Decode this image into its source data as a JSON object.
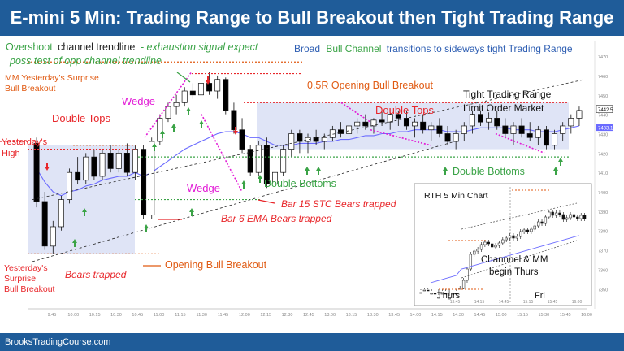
{
  "title": "E-mini 5 Min: Trading Range to Bull Breakout then Tight Trading Range",
  "footer": "BrooksTradingCourse.com",
  "colors": {
    "header_bg": "#1f5c99",
    "bull": "#ffffff",
    "bear": "#000000",
    "ema": "#6b6bff",
    "range_box": "#d9dff5",
    "red_annotation": "#e8262a",
    "green_annotation": "#3aa346",
    "magenta": "#e21bd6",
    "orange": "#e05a12",
    "blue_text": "#2f5fb3"
  },
  "annotations": {
    "overshoot_line1_green": "Overshoot",
    "overshoot_line1_black": "channel trendline",
    "overshoot_line1_italic": "- exhaustion signal expect",
    "overshoot_line2": "poss test of opp channel trendline",
    "broad_1": "Broad",
    "broad_2": "Bull Channel",
    "broad_3": "transitions to sideways tight Trading Range",
    "mm_line1": "MM Yesterday's Surprise",
    "mm_line2": "Bull Breakout",
    "half_r": "0.5R Opening Bull Breakout",
    "tight_tr_line1": "Tight Trading Range",
    "tight_tr_line2": "Limit Order Market",
    "double_tops_left": "Double Tops",
    "double_tops_right": "Double Tops",
    "wedge_top": "Wedge",
    "wedge_bottom": "Wedge",
    "yesterdays_high_1": "Yesterday's",
    "yesterdays_high_2": "High",
    "double_bottoms_mid": "Double Bottoms",
    "double_bottoms_right": "Double Bottoms",
    "bar15": "Bar 15 STC Bears trapped",
    "bar6": "Bar 6 EMA Bears trapped",
    "opening_bull_breakout": "Opening Bull Breakout",
    "bears_trapped": "Bears trapped",
    "surprise_1": "Yesterday's",
    "surprise_2": "Surprise",
    "surprise_3": "Bull Breakout"
  },
  "inset": {
    "title": "RTH 5 Min Chart",
    "label_1": "Channnel & MM",
    "label_2": "begin Thurs",
    "thurs": "Thurs",
    "fri": "Fri",
    "x_ticks": [
      "13:45",
      "14:15",
      "14:45",
      "15:15",
      "15:45",
      "16:00"
    ]
  },
  "chart_data": {
    "type": "candlestick",
    "title": "E-mini 5 Min: Trading Range to Bull Breakout then Tight Trading Range",
    "x_ticks": [
      "9:45",
      "10:00",
      "10:15",
      "10:30",
      "10:45",
      "11:00",
      "11:15",
      "11:30",
      "11:45",
      "12:00",
      "12:15",
      "12:30",
      "12:45",
      "13:00",
      "13:15",
      "13:30",
      "13:45",
      "14:00",
      "14:15",
      "14:30",
      "14:45",
      "15:00",
      "15:15",
      "15:30",
      "15:45",
      "16:00"
    ],
    "y_ticks": [
      7350,
      7360,
      7370,
      7380,
      7390,
      7400,
      7410,
      7420,
      7430,
      7440,
      7450,
      7460,
      7470
    ],
    "ylim": [
      7343,
      7478
    ],
    "price_labels": [
      "7442.5",
      "7433.1"
    ],
    "candles": [
      [
        7425,
        7428,
        7392,
        7395
      ],
      [
        7395,
        7400,
        7370,
        7372
      ],
      [
        7372,
        7385,
        7368,
        7382
      ],
      [
        7382,
        7398,
        7380,
        7396
      ],
      [
        7396,
        7412,
        7394,
        7410
      ],
      [
        7410,
        7418,
        7404,
        7406
      ],
      [
        7406,
        7420,
        7404,
        7418
      ],
      [
        7418,
        7422,
        7406,
        7408
      ],
      [
        7408,
        7422,
        7406,
        7420
      ],
      [
        7420,
        7424,
        7410,
        7412
      ],
      [
        7412,
        7422,
        7410,
        7420
      ],
      [
        7420,
        7425,
        7408,
        7410
      ],
      [
        7410,
        7424,
        7406,
        7422
      ],
      [
        7422,
        7424,
        7386,
        7388
      ],
      [
        7388,
        7428,
        7386,
        7426
      ],
      [
        7426,
        7440,
        7424,
        7438
      ],
      [
        7438,
        7446,
        7436,
        7444
      ],
      [
        7444,
        7450,
        7440,
        7446
      ],
      [
        7446,
        7454,
        7444,
        7452
      ],
      [
        7452,
        7456,
        7448,
        7450
      ],
      [
        7450,
        7458,
        7448,
        7456
      ],
      [
        7456,
        7462,
        7450,
        7452
      ],
      [
        7452,
        7460,
        7448,
        7458
      ],
      [
        7458,
        7459,
        7440,
        7442
      ],
      [
        7442,
        7446,
        7430,
        7432
      ],
      [
        7432,
        7438,
        7420,
        7422
      ],
      [
        7422,
        7424,
        7408,
        7410
      ],
      [
        7410,
        7426,
        7408,
        7424
      ],
      [
        7424,
        7428,
        7402,
        7404
      ],
      [
        7404,
        7412,
        7400,
        7410
      ],
      [
        7410,
        7424,
        7408,
        7422
      ],
      [
        7422,
        7432,
        7418,
        7430
      ],
      [
        7430,
        7432,
        7420,
        7426
      ],
      [
        7426,
        7430,
        7420,
        7428
      ],
      [
        7428,
        7432,
        7424,
        7426
      ],
      [
        7426,
        7430,
        7422,
        7428
      ],
      [
        7428,
        7434,
        7426,
        7432
      ],
      [
        7432,
        7436,
        7428,
        7430
      ],
      [
        7430,
        7436,
        7426,
        7434
      ],
      [
        7434,
        7438,
        7430,
        7436
      ],
      [
        7436,
        7440,
        7432,
        7434
      ],
      [
        7434,
        7438,
        7430,
        7437
      ],
      [
        7437,
        7442,
        7434,
        7436
      ],
      [
        7436,
        7443,
        7432,
        7440
      ],
      [
        7440,
        7442,
        7434,
        7438
      ],
      [
        7438,
        7442,
        7432,
        7434
      ],
      [
        7434,
        7438,
        7428,
        7436
      ],
      [
        7436,
        7440,
        7430,
        7432
      ],
      [
        7432,
        7436,
        7426,
        7434
      ],
      [
        7434,
        7438,
        7428,
        7430
      ],
      [
        7430,
        7434,
        7424,
        7426
      ],
      [
        7426,
        7432,
        7422,
        7430
      ],
      [
        7430,
        7436,
        7426,
        7434
      ],
      [
        7434,
        7442,
        7430,
        7440
      ],
      [
        7440,
        7442,
        7434,
        7436
      ],
      [
        7436,
        7441,
        7432,
        7438
      ],
      [
        7438,
        7442,
        7432,
        7434
      ],
      [
        7434,
        7438,
        7428,
        7430
      ],
      [
        7430,
        7436,
        7424,
        7434
      ],
      [
        7434,
        7438,
        7428,
        7430
      ],
      [
        7430,
        7436,
        7426,
        7428
      ],
      [
        7428,
        7434,
        7424,
        7432
      ],
      [
        7432,
        7434,
        7422,
        7424
      ],
      [
        7424,
        7432,
        7422,
        7430
      ],
      [
        7430,
        7436,
        7426,
        7434
      ],
      [
        7434,
        7440,
        7430,
        7438
      ],
      [
        7438,
        7444,
        7434,
        7442
      ]
    ],
    "ema": [
      7412,
      7405,
      7400,
      7398,
      7400,
      7401,
      7403,
      7404,
      7406,
      7407,
      7408,
      7408,
      7410,
      7408,
      7410,
      7413,
      7416,
      7419,
      7422,
      7424,
      7426,
      7428,
      7430,
      7431,
      7431,
      7430,
      7428,
      7428,
      7426,
      7424,
      7424,
      7424,
      7425,
      7425,
      7425,
      7426,
      7426,
      7427,
      7427,
      7428,
      7429,
      7429,
      7430,
      7430,
      7431,
      7431,
      7432,
      7432,
      7432,
      7432,
      7431,
      7431,
      7431,
      7432,
      7433,
      7433,
      7433,
      7433,
      7432,
      7432,
      7432,
      7431,
      7431,
      7431,
      7432,
      7433,
      7434
    ]
  }
}
